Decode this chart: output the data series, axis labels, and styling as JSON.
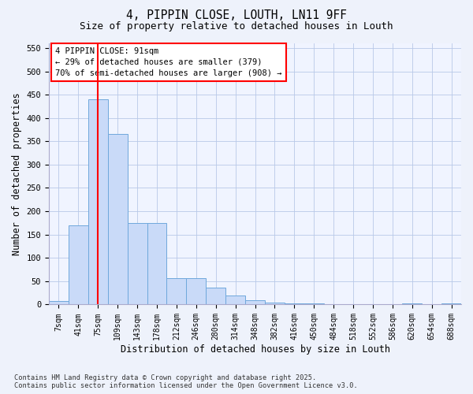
{
  "title_line1": "4, PIPPIN CLOSE, LOUTH, LN11 9FF",
  "title_line2": "Size of property relative to detached houses in Louth",
  "xlabel": "Distribution of detached houses by size in Louth",
  "ylabel": "Number of detached properties",
  "categories": [
    "7sqm",
    "41sqm",
    "75sqm",
    "109sqm",
    "143sqm",
    "178sqm",
    "212sqm",
    "246sqm",
    "280sqm",
    "314sqm",
    "348sqm",
    "382sqm",
    "416sqm",
    "450sqm",
    "484sqm",
    "518sqm",
    "552sqm",
    "586sqm",
    "620sqm",
    "654sqm",
    "688sqm"
  ],
  "values": [
    8,
    170,
    440,
    365,
    175,
    175,
    57,
    57,
    37,
    20,
    10,
    5,
    2,
    2,
    0,
    0,
    0,
    0,
    2,
    0,
    2
  ],
  "bar_color": "#c9daf8",
  "bar_edge_color": "#6fa8dc",
  "red_line_x": 2.0,
  "annotation_title": "4 PIPPIN CLOSE: 91sqm",
  "annotation_line1": "← 29% of detached houses are smaller (379)",
  "annotation_line2": "70% of semi-detached houses are larger (908) →",
  "ylim": [
    0,
    560
  ],
  "yticks": [
    0,
    50,
    100,
    150,
    200,
    250,
    300,
    350,
    400,
    450,
    500,
    550
  ],
  "footer_line1": "Contains HM Land Registry data © Crown copyright and database right 2025.",
  "footer_line2": "Contains public sector information licensed under the Open Government Licence v3.0.",
  "background_color": "#eef2fb",
  "plot_bg_color": "#f0f4ff",
  "grid_color": "#b8c8e8"
}
